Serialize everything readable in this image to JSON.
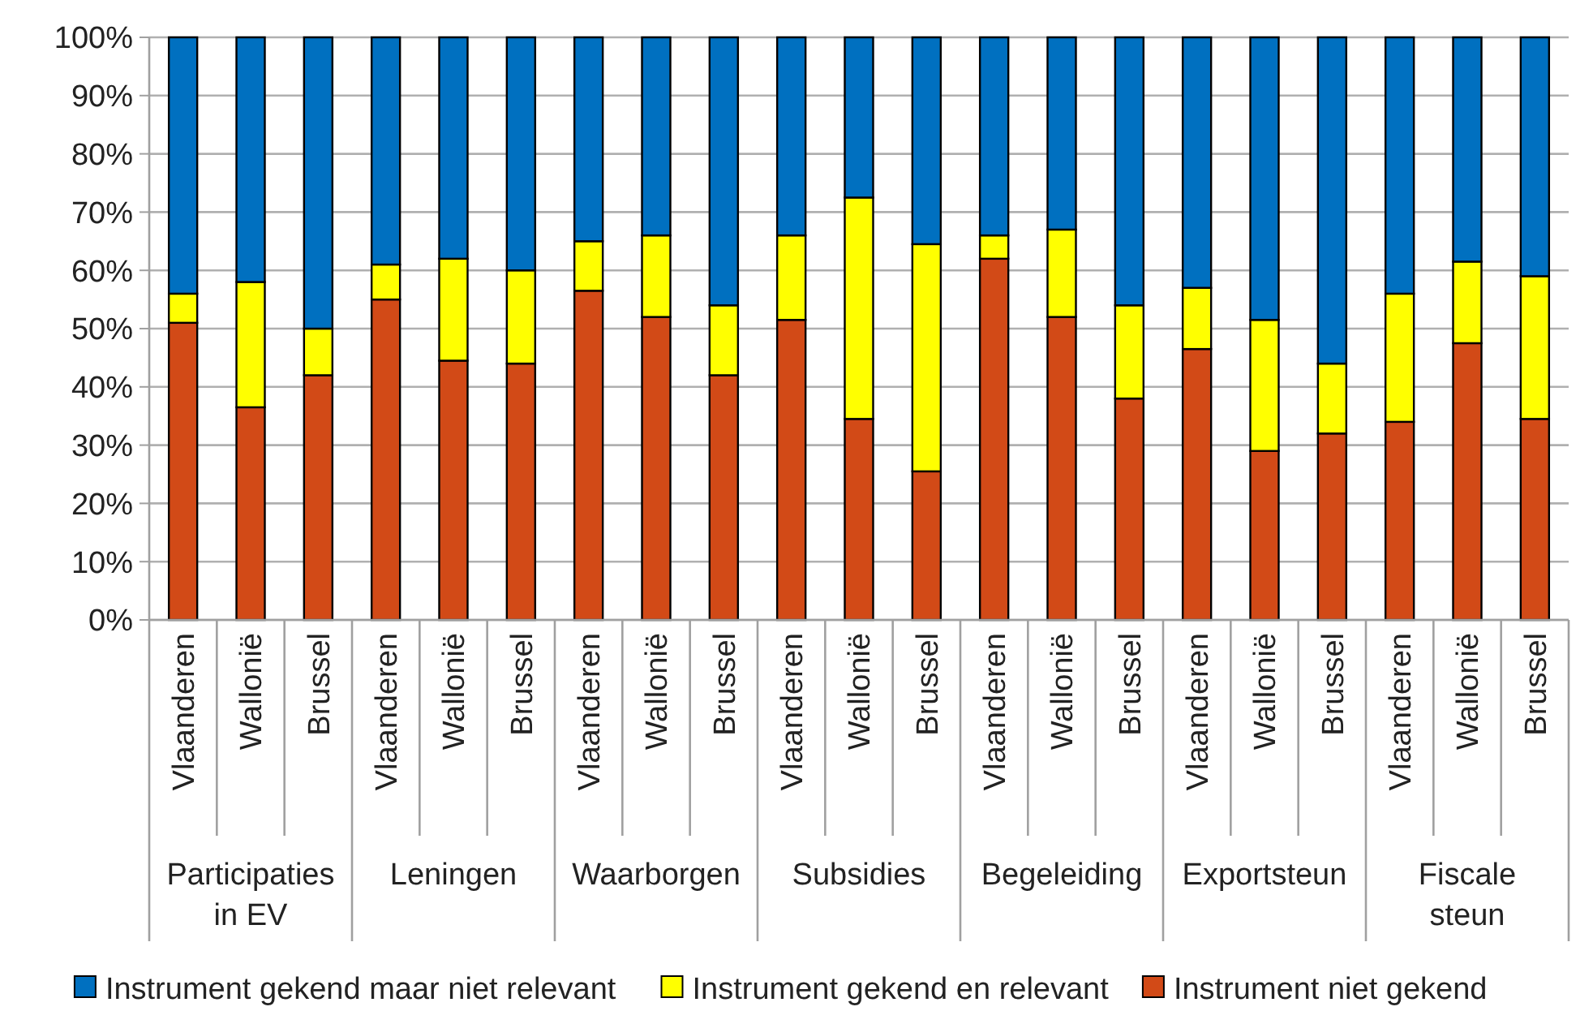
{
  "chart_data": {
    "type": "bar",
    "stacked": true,
    "categories": [
      "Vlaanderen",
      "Wallonië",
      "Brussel",
      "Vlaanderen",
      "Wallonië",
      "Brussel",
      "Vlaanderen",
      "Wallonië",
      "Brussel",
      "Vlaanderen",
      "Wallonië",
      "Brussel",
      "Vlaanderen",
      "Wallonië",
      "Brussel",
      "Vlaanderen",
      "Wallonië",
      "Brussel",
      "Vlaanderen",
      "Wallonië",
      "Brussel"
    ],
    "annotations": [
      "Participaties in EV",
      "Leningen",
      "Waarborgen",
      "Subsidies",
      "Begeleiding",
      "Exportsteun",
      "Fiscale steun"
    ],
    "series": [
      {
        "name": "Instrument niet gekend",
        "color": "#d24a17",
        "values": [
          51,
          36.5,
          42,
          55,
          44.5,
          44,
          56.5,
          52,
          42,
          51.5,
          34.5,
          25.5,
          62,
          52,
          38,
          46.5,
          29,
          32,
          34,
          47.5,
          34.5
        ]
      },
      {
        "name": "Instrument gekend en relevant",
        "color": "#ffff00",
        "values": [
          5,
          21.5,
          8,
          6,
          17.5,
          16,
          8.5,
          14,
          12,
          14.5,
          38,
          39,
          4,
          15,
          16,
          10.5,
          22.5,
          12,
          22,
          14,
          24.5
        ]
      },
      {
        "name": "Instrument gekend maar niet relevant",
        "color": "#0070c0",
        "values": [
          44,
          42,
          50,
          39,
          38,
          40,
          35,
          34,
          46,
          34,
          27.5,
          35.5,
          34,
          33,
          46,
          43,
          48.5,
          56,
          44,
          38.5,
          41
        ]
      }
    ],
    "ylim": [
      0,
      100
    ],
    "yticks": [
      {
        "value": 0,
        "label": "0%"
      },
      {
        "value": 10,
        "label": "10%"
      },
      {
        "value": 20,
        "label": "20%"
      },
      {
        "value": 30,
        "label": "30%"
      },
      {
        "value": 40,
        "label": "40%"
      },
      {
        "value": 50,
        "label": "50%"
      },
      {
        "value": 60,
        "label": "60%"
      },
      {
        "value": 70,
        "label": "70%"
      },
      {
        "value": 80,
        "label": "80%"
      },
      {
        "value": 90,
        "label": "90%"
      },
      {
        "value": 100,
        "label": "100%"
      }
    ],
    "grid": "y",
    "legend": "bottom"
  }
}
